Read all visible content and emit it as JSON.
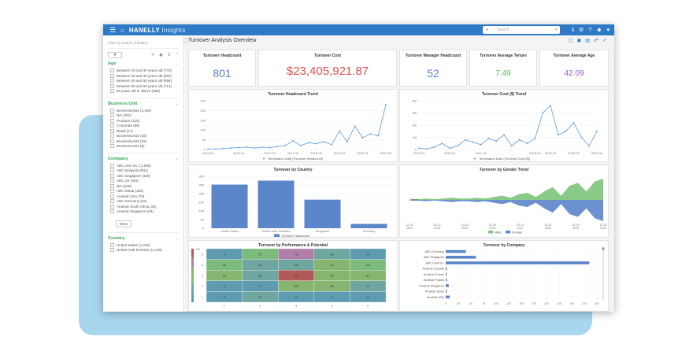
{
  "app": {
    "brand_bold": "HANELLY",
    "brand_light": "Insights",
    "search_placeholder": "Search",
    "search_icon": "user-icon",
    "icons": [
      "info-icon",
      "gear-icon",
      "help-icon",
      "user-icon",
      "chevron-down-icon"
    ]
  },
  "sidebar": {
    "search_placeholder": "Filter by Search (Filtable)",
    "groups": [
      {
        "title": "Age",
        "items": [
          "Between 20 and 30 years old (776)",
          "Between 30 and 40 years old (894)",
          "Between 40 and 50 years old (898)",
          "Between 50 and 60 years old (714)",
          "60 years old or above (468)"
        ]
      },
      {
        "title": "Business Unit",
        "items": [
          "BusinessUnit4 (3,346)",
          "N/A (201)",
          "Products (118)",
          "Corporate (88)",
          "Retail (17)",
          "BusinessUnit2 (16)",
          "BusinessUnit3 (16)",
          "BusinessUnit1 (8)"
        ]
      },
      {
        "title": "Company",
        "items": [
          "ABC USA Inc. (1,606)",
          "ABC Malaysia (831)",
          "ABC Singapore (420)",
          "ABC UK (261)",
          "N/A (239)",
          "ABC Dubai (155)",
          "AnaKak USA (79)",
          "ABC Germany (53)",
          "AnaKak South Africa (25)",
          "AnaKak Singapore (20)"
        ],
        "more": "More"
      },
      {
        "title": "Country",
        "items": [
          "United States (1,245)",
          "United Arab Emirates (1,245)"
        ]
      }
    ]
  },
  "main": {
    "title": "Turnover Analysis Overview"
  },
  "kpis": [
    {
      "label": "Turnover Headcount",
      "value": "801",
      "color": "#5b86c9"
    },
    {
      "label": "Turnover Cost",
      "value": "$23,405,921.87",
      "color": "#d9534f"
    },
    {
      "label": "Turnover Manager Headcount",
      "value": "52",
      "color": "#5b86c9"
    },
    {
      "label": "Turnover Average Tenure",
      "value": "7.49",
      "color": "#5cb85c"
    },
    {
      "label": "Turnover Average Age",
      "value": "42.09",
      "color": "#9b59d0"
    }
  ],
  "chart_data": [
    {
      "type": "line",
      "title": "Turnover Headcount Trend",
      "x": [
        "2015-01",
        "2015-02",
        "2015-03",
        "2015-04",
        "2016-01",
        "2016-02",
        "2016-03",
        "2016-04",
        "2017-01",
        "2017-02",
        "2017-03",
        "2017-04",
        "2018-01",
        "2018-02",
        "2018-03",
        "2018-04",
        "2019-01",
        "2019-02",
        "2019-03",
        "2019-04",
        "2020-01",
        "2020-02",
        "2020-03",
        "2020-04"
      ],
      "xticks": [
        "2015-01",
        "2016-01",
        "2017-01",
        "2017-04",
        "2018-03",
        "2019-02",
        "2020-01",
        "2020-04"
      ],
      "values": [
        2,
        3,
        5,
        8,
        10,
        12,
        8,
        12,
        10,
        15,
        20,
        45,
        20,
        35,
        30,
        40,
        25,
        95,
        40,
        120,
        60,
        80,
        70,
        230
      ],
      "ylim": [
        0,
        250
      ],
      "yticks": [
        0,
        50,
        100,
        150,
        200,
        250
      ],
      "legend": "Termination Date (Turnover Headcount)"
    },
    {
      "type": "line",
      "title": "Turnover Cost ($) Trend",
      "x": [
        "2015-01",
        "2015-02",
        "2015-03",
        "2015-04",
        "2016-01",
        "2016-02",
        "2016-03",
        "2016-04",
        "2017-01",
        "2017-02",
        "2017-03",
        "2017-04",
        "2018-01",
        "2018-02",
        "2018-03",
        "2018-04",
        "2019-01",
        "2019-02",
        "2019-03",
        "2019-04",
        "2020-01",
        "2020-02",
        "2020-03",
        "2020-04"
      ],
      "xticks": [
        "2015-01",
        "2016-01",
        "2017-01",
        "2018-04",
        "2019-02",
        "2020-01",
        "2020-04"
      ],
      "values": [
        0.1,
        0.05,
        0.2,
        0.5,
        0.1,
        0.3,
        0.8,
        0.6,
        0.4,
        0.9,
        0.7,
        1.2,
        0.3,
        0.8,
        0.5,
        0.9,
        3.0,
        3.6,
        1.2,
        1.5,
        2.2,
        1.0,
        0.3,
        1.5
      ],
      "ylim": [
        0,
        4
      ],
      "yticks": [
        "0",
        "1M",
        "2M",
        "3M",
        "4M"
      ],
      "legend": "Termination Date (Turnover Cost ($))"
    },
    {
      "type": "bar",
      "title": "Turnover by Country",
      "categories": [
        "United States",
        "United Arab Emirates",
        "Singapore",
        "Germany"
      ],
      "values": [
        252,
        275,
        165,
        25
      ],
      "ylim": [
        0,
        300
      ],
      "yticks": [
        0,
        50,
        100,
        150,
        200,
        250,
        300
      ],
      "legend": "Turnover Headcount"
    },
    {
      "type": "area",
      "title": "Turnover by Gender Trend",
      "xticks": [
        "12-31\n2014",
        "03-12\n2015",
        "10-24\n2015",
        "07-26\n2016",
        "03-12\n2017",
        "12-31\n2018",
        "10-19\n2019",
        "12-24\n2020"
      ],
      "series": [
        {
          "name": "Male",
          "color": "#7dc47a"
        },
        {
          "name": "Female",
          "color": "#5b86c9"
        }
      ],
      "label": "Trend"
    },
    {
      "type": "heatmap",
      "title": "Turnover by Performance & Potential",
      "xticks": [
        "1",
        "2",
        "3",
        "4",
        "5"
      ],
      "yticks": [
        "5",
        "4",
        "3",
        "2",
        "1"
      ],
      "cells": [
        [
          9,
          37,
          79,
          16,
          5
        ],
        [
          30,
          24,
          20,
          67,
          28
        ],
        [
          51,
          15,
          125,
          52,
          57
        ],
        [
          8,
          5,
          55,
          63,
          11
        ],
        [
          5,
          12,
          2,
          3,
          2
        ]
      ]
    },
    {
      "type": "bar",
      "orientation": "horizontal",
      "title": "Turnover by Company",
      "categories": [
        "ABC Germany",
        "ABC Singapore",
        "ABC USA Inc.",
        "AnaKak Canada",
        "AnaKak France",
        "AnaKak Poland",
        "AnaKak Singapore",
        "AnaKak Spain",
        "AnaKak USA"
      ],
      "values": [
        40,
        60,
        285,
        2,
        2,
        2,
        6,
        2,
        8
      ],
      "xlim": [
        0,
        300
      ],
      "xticks": [
        0,
        25,
        50,
        75,
        100,
        125,
        150,
        175,
        200,
        225,
        250,
        275,
        300
      ]
    }
  ]
}
